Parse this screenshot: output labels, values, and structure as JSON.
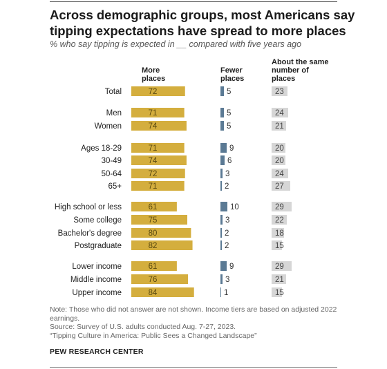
{
  "title": "Across demographic groups, most Americans say tipping expectations have spread to more places",
  "subtitle": "% who say tipping is expected in __ compared with five years ago",
  "columns": {
    "more": "More places",
    "fewer": "Fewer places",
    "same": "About the same number of places"
  },
  "colors": {
    "more": "#D4AE3E",
    "fewer": "#5B7A94",
    "same": "#D6D6D6"
  },
  "chart_data": {
    "type": "bar",
    "categories": [
      "Total",
      "Men",
      "Women",
      "Ages 18-29",
      "30-49",
      "50-64",
      "65+",
      "High school or less",
      "Some college",
      "Bachelor's degree",
      "Postgraduate",
      "Lower income",
      "Middle income",
      "Upper income"
    ],
    "series": [
      {
        "name": "More places",
        "values": [
          72,
          71,
          74,
          71,
          74,
          72,
          71,
          61,
          75,
          80,
          82,
          61,
          76,
          84
        ]
      },
      {
        "name": "Fewer places",
        "values": [
          5,
          5,
          5,
          9,
          6,
          3,
          2,
          10,
          3,
          2,
          2,
          9,
          3,
          1
        ]
      },
      {
        "name": "About the same number of places",
        "values": [
          23,
          24,
          21,
          20,
          20,
          24,
          27,
          29,
          22,
          18,
          15,
          29,
          21,
          15
        ]
      }
    ]
  },
  "notes": {
    "note": "Note: Those who did not answer are not shown. Income tiers are based on adjusted 2022 earnings.",
    "source": "Source: Survey of U.S. adults conducted Aug. 7-27, 2023.",
    "report": "“Tipping Culture in America: Public Sees a Changed Landscape”",
    "org": "PEW RESEARCH CENTER"
  }
}
